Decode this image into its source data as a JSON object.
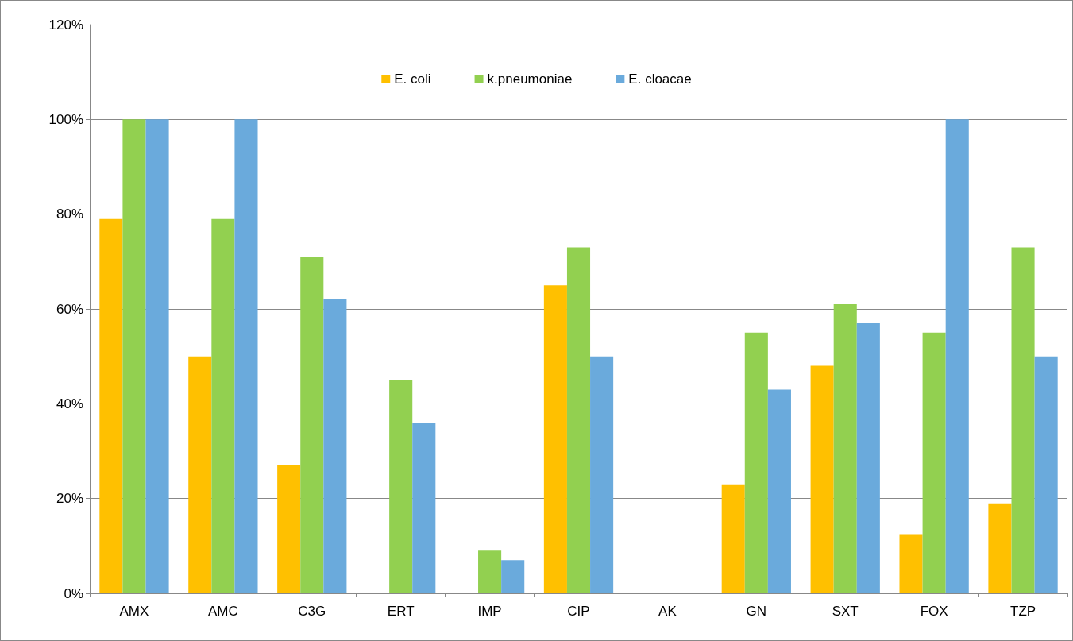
{
  "chart_data": {
    "type": "bar",
    "categories": [
      "AMX",
      "AMC",
      "C3G",
      "ERT",
      "IMP",
      "CIP",
      "AK",
      "GN",
      "SXT",
      "FOX",
      "TZP"
    ],
    "series": [
      {
        "name": "E. coli",
        "color": "#ffc000",
        "values": [
          79,
          50,
          27,
          0,
          0,
          65,
          0,
          23,
          48,
          12.5,
          19
        ]
      },
      {
        "name": "k.pneumoniae",
        "color": "#92d050",
        "values": [
          100,
          79,
          71,
          45,
          9,
          73,
          0,
          55,
          61,
          55,
          73
        ]
      },
      {
        "name": "E. cloacae",
        "color": "#6aaadc",
        "values": [
          100,
          100,
          62,
          36,
          7,
          50,
          0,
          43,
          57,
          100,
          50
        ]
      }
    ],
    "ylim": [
      0,
      120
    ],
    "yticks": [
      {
        "value": 0,
        "label": "0%"
      },
      {
        "value": 20,
        "label": "20%"
      },
      {
        "value": 40,
        "label": "40%"
      },
      {
        "value": 60,
        "label": "60%"
      },
      {
        "value": 80,
        "label": "80%"
      },
      {
        "value": 100,
        "label": "100%"
      },
      {
        "value": 120,
        "label": "120%"
      }
    ],
    "grid": "y",
    "legend": "top"
  }
}
